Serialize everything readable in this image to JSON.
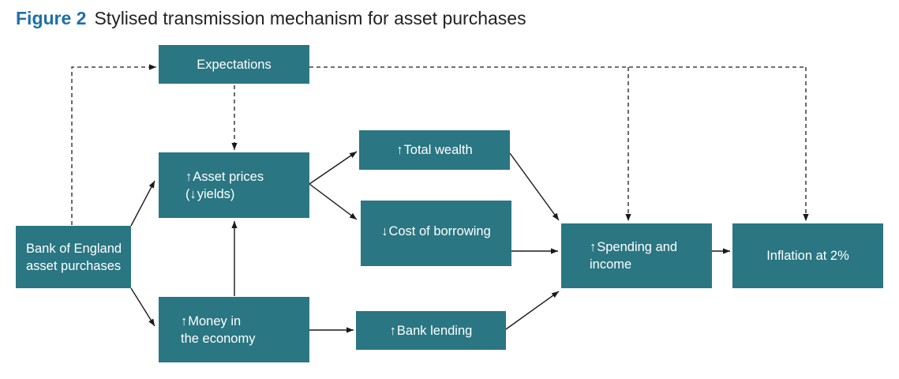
{
  "figure": {
    "label": "Figure 2",
    "title": "Stylised transmission mechanism for asset purchases"
  },
  "colors": {
    "box_fill": "#2a7682",
    "box_text": "#ffffff",
    "figure_label": "#1f6fa8",
    "connector": "#1a1a1a"
  },
  "nodes": {
    "expectations": {
      "line1": "Expectations"
    },
    "asset_prices": {
      "arrow": "↑",
      "line1": "Asset prices",
      "line2_open": "(",
      "line2_arrow": "↓",
      "line2_rest": "yields)"
    },
    "total_wealth": {
      "arrow": "↑",
      "line1": "Total wealth"
    },
    "cost_of_borrowing": {
      "arrow": "↓",
      "line1": "Cost of borrowing"
    },
    "bank_of_england": {
      "line1": "Bank of England",
      "line2": "asset purchases"
    },
    "money": {
      "arrow": "↑",
      "line1": "Money in",
      "line2": "the economy"
    },
    "bank_lending": {
      "arrow": "↑",
      "line1": "Bank lending"
    },
    "spending": {
      "arrow": "↑",
      "line1": "Spending and",
      "line2": "income"
    },
    "inflation": {
      "line1": "Inflation at 2%"
    }
  }
}
